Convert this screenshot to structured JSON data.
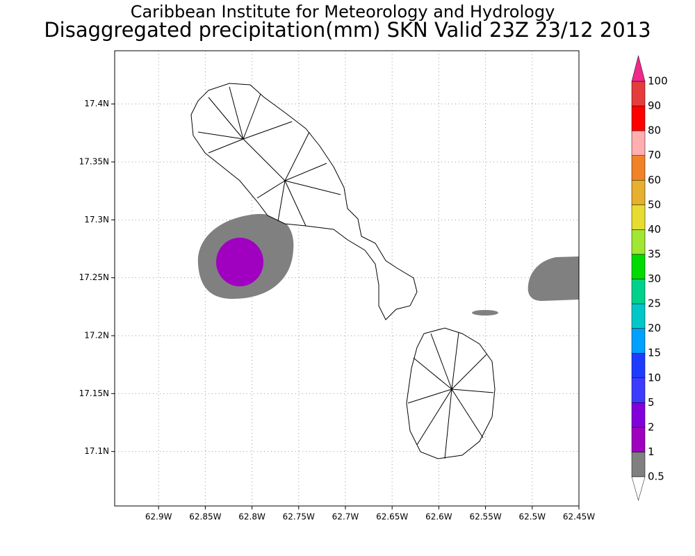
{
  "title": "Caribbean Institute for Meteorology and Hydrology",
  "subtitle": "Disaggregated precipitation(mm) SKN Valid 23Z 23/12 2013",
  "map": {
    "xlim": [
      -62.947,
      -62.45
    ],
    "ylim": [
      17.053,
      17.446
    ],
    "xticks": [
      {
        "value": -62.9,
        "label": "62.9W"
      },
      {
        "value": -62.85,
        "label": "62.85W"
      },
      {
        "value": -62.8,
        "label": "62.8W"
      },
      {
        "value": -62.75,
        "label": "62.75W"
      },
      {
        "value": -62.7,
        "label": "62.7W"
      },
      {
        "value": -62.65,
        "label": "62.65W"
      },
      {
        "value": -62.6,
        "label": "62.6W"
      },
      {
        "value": -62.55,
        "label": "62.55W"
      },
      {
        "value": -62.5,
        "label": "62.5W"
      },
      {
        "value": -62.45,
        "label": "62.45W"
      }
    ],
    "yticks": [
      {
        "value": 17.1,
        "label": "17.1N"
      },
      {
        "value": 17.15,
        "label": "17.15N"
      },
      {
        "value": 17.2,
        "label": "17.2N"
      },
      {
        "value": 17.25,
        "label": "17.25N"
      },
      {
        "value": 17.3,
        "label": "17.3N"
      },
      {
        "value": 17.35,
        "label": "17.35N"
      },
      {
        "value": 17.4,
        "label": "17.4N"
      }
    ],
    "grid": true
  },
  "colorbar": {
    "levels": [
      0.5,
      1,
      2,
      5,
      10,
      15,
      20,
      25,
      30,
      35,
      40,
      50,
      60,
      70,
      80,
      90,
      100
    ],
    "colors": [
      "#808080",
      "#a000c0",
      "#8200dc",
      "#3c3cff",
      "#1e3cff",
      "#00a0ff",
      "#00c8c8",
      "#00d28c",
      "#00dc00",
      "#a0e632",
      "#e6dc32",
      "#e6af2d",
      "#f08228",
      "#ffafaf",
      "#ff0000",
      "#e63c3c"
    ],
    "under_color": "#ffffff",
    "over_color": "#f0288c"
  }
}
